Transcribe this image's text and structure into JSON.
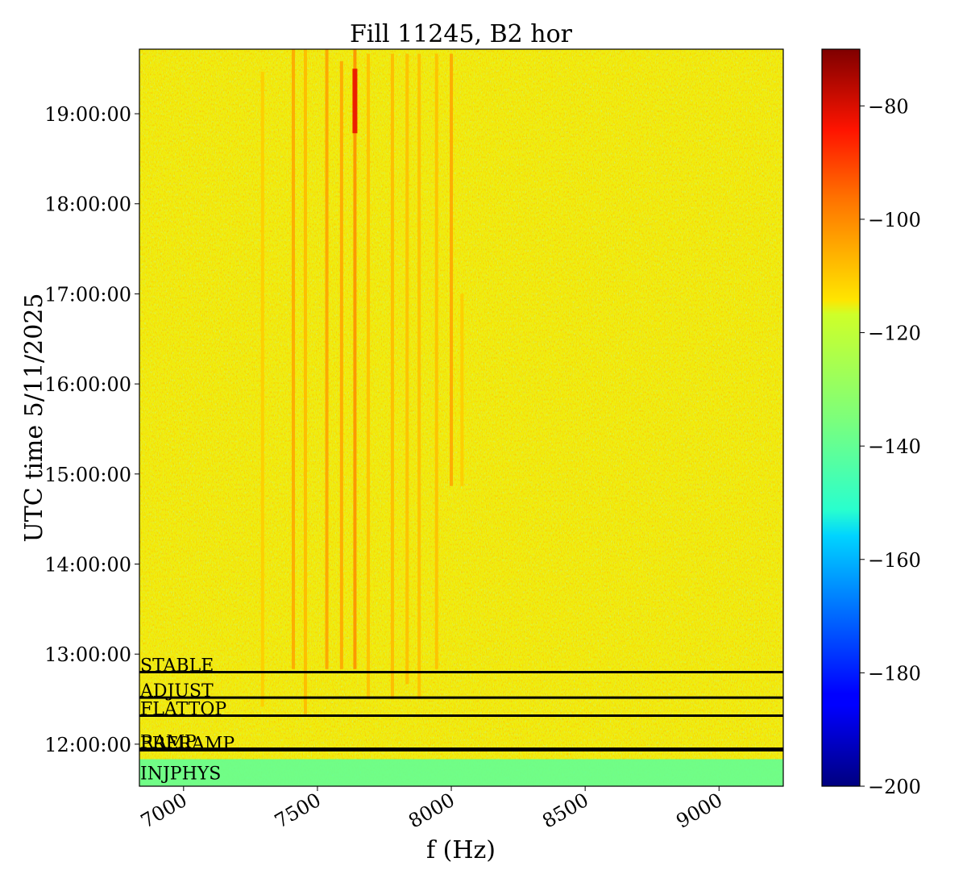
{
  "chart_data": {
    "type": "heatmap",
    "title": "Fill 11245, B2 hor",
    "xlabel": "f (Hz)",
    "ylabel": "UTC time 5/11/2025",
    "xlim": [
      6835,
      9240
    ],
    "ylim": [
      "11:32:00",
      "19:43:00"
    ],
    "x_ticks": [
      7000,
      7500,
      8000,
      8500,
      9000
    ],
    "x_tick_labels": [
      "7000",
      "7500",
      "8000",
      "8500",
      "9000"
    ],
    "y_ticks": [
      "12:00:00",
      "13:00:00",
      "14:00:00",
      "15:00:00",
      "16:00:00",
      "17:00:00",
      "18:00:00",
      "19:00:00"
    ],
    "colorbar": {
      "colormap": "jet",
      "range": [
        -200,
        -70
      ],
      "ticks": [
        -80,
        -100,
        -120,
        -140,
        -160,
        -180,
        -200
      ],
      "tick_labels": [
        "−80",
        "−100",
        "−120",
        "−140",
        "−160",
        "−180",
        "−200"
      ]
    },
    "background_level": -115,
    "injection_level": -140,
    "spectral_lines": [
      {
        "f": 7295,
        "t_start": "12:25:00",
        "t_end": "19:28:00",
        "level": -110
      },
      {
        "f": 7410,
        "t_start": "12:50:00",
        "t_end": "19:43:00",
        "level": -104
      },
      {
        "f": 7455,
        "t_start": "12:20:00",
        "t_end": "19:43:00",
        "level": -107
      },
      {
        "f": 7535,
        "t_start": "12:50:00",
        "t_end": "19:43:00",
        "level": -103
      },
      {
        "f": 7590,
        "t_start": "12:50:00",
        "t_end": "19:35:00",
        "level": -104
      },
      {
        "f": 7640,
        "t_start": "12:50:00",
        "t_end": "19:43:00",
        "level": -100
      },
      {
        "f": 7690,
        "t_start": "12:30:00",
        "t_end": "19:40:00",
        "level": -108
      },
      {
        "f": 7780,
        "t_start": "12:30:00",
        "t_end": "19:40:00",
        "level": -107
      },
      {
        "f": 7835,
        "t_start": "12:40:00",
        "t_end": "19:40:00",
        "level": -108
      },
      {
        "f": 7880,
        "t_start": "12:30:00",
        "t_end": "19:40:00",
        "level": -108
      },
      {
        "f": 7945,
        "t_start": "12:50:00",
        "t_end": "19:40:00",
        "level": -108
      },
      {
        "f": 8000,
        "t_start": "14:52:00",
        "t_end": "19:40:00",
        "level": -104
      },
      {
        "f": 8040,
        "t_start": "14:52:00",
        "t_end": "17:00:00",
        "level": -110
      }
    ],
    "hot_spots": [
      {
        "f": 7640,
        "t_start": "18:47:00",
        "t_end": "19:30:00",
        "level": -82
      }
    ],
    "events": [
      {
        "label": "STABLE",
        "time": "12:48:00"
      },
      {
        "label": "ADJUST",
        "time": "12:31:00"
      },
      {
        "label": "FLATTOP",
        "time": "12:19:00"
      },
      {
        "label": "RAMP",
        "time": "11:57:00"
      },
      {
        "label": "PRERAMP",
        "time": "11:56:00"
      },
      {
        "label": "INJPHYS",
        "time": "11:36:00"
      }
    ]
  }
}
